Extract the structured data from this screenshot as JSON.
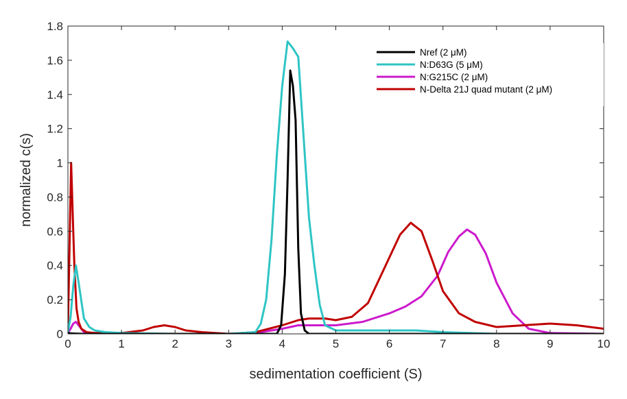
{
  "chart_data": {
    "type": "line",
    "xlabel": "sedimentation coefficient (S)",
    "ylabel": "normalized c(s)",
    "xlim": [
      0,
      10
    ],
    "ylim": [
      0,
      1.8
    ],
    "xticks": [
      "0",
      "1",
      "2",
      "3",
      "4",
      "5",
      "6",
      "7",
      "8",
      "9",
      "10"
    ],
    "yticks": [
      "0",
      "0.2",
      "0.4",
      "0.6",
      "0.8",
      "1",
      "1.2",
      "1.4",
      "1.6",
      "1.8"
    ],
    "grid": false,
    "legend_position": "top-right",
    "series": [
      {
        "name": "Nref (2 μM)",
        "color": "#000000",
        "x": [
          0,
          0.05,
          0.1,
          0.2,
          0.3,
          0.5,
          1,
          2,
          3,
          3.9,
          3.98,
          4.05,
          4.1,
          4.15,
          4.2,
          4.25,
          4.3,
          4.35,
          4.42,
          4.5,
          5,
          6,
          7,
          8,
          9,
          10
        ],
        "y": [
          0.005,
          0.003,
          0.002,
          0.001,
          0,
          0,
          0,
          0,
          0,
          0,
          0.05,
          0.35,
          0.9,
          1.54,
          1.45,
          1.25,
          0.5,
          0.12,
          0.02,
          0,
          0,
          0,
          0,
          0,
          0,
          0
        ]
      },
      {
        "name": "N:D63G (5 μM)",
        "color": "#2EC4C4",
        "x": [
          0,
          0.05,
          0.1,
          0.15,
          0.2,
          0.3,
          0.4,
          0.5,
          0.7,
          1,
          2,
          3,
          3.5,
          3.6,
          3.7,
          3.8,
          3.9,
          4,
          4.1,
          4.2,
          4.3,
          4.4,
          4.5,
          4.6,
          4.7,
          4.8,
          5,
          5.5,
          6,
          6.5,
          7,
          8,
          9,
          10
        ],
        "y": [
          0.01,
          0.1,
          0.28,
          0.4,
          0.3,
          0.09,
          0.04,
          0.02,
          0.01,
          0.005,
          0,
          0,
          0.01,
          0.06,
          0.2,
          0.55,
          1.05,
          1.45,
          1.71,
          1.67,
          1.62,
          1.15,
          0.68,
          0.4,
          0.17,
          0.05,
          0.02,
          0.02,
          0.02,
          0.02,
          0.01,
          0,
          0,
          0
        ]
      },
      {
        "name": "N:G215C (2 μM)",
        "color": "#CC19CC",
        "x": [
          0,
          0.05,
          0.1,
          0.15,
          0.2,
          0.3,
          0.5,
          1,
          2,
          3,
          3.5,
          4,
          4.3,
          4.6,
          5,
          5.5,
          6,
          6.3,
          6.6,
          6.9,
          7.1,
          7.3,
          7.45,
          7.6,
          7.8,
          8,
          8.3,
          8.6,
          9,
          10
        ],
        "y": [
          0.005,
          0.03,
          0.06,
          0.07,
          0.05,
          0.01,
          0,
          0,
          0,
          0,
          0.005,
          0.03,
          0.05,
          0.05,
          0.05,
          0.07,
          0.12,
          0.16,
          0.22,
          0.34,
          0.48,
          0.57,
          0.61,
          0.58,
          0.47,
          0.3,
          0.12,
          0.03,
          0.005,
          0
        ]
      },
      {
        "name": "N-Delta 21J quad mutant (2 μM)",
        "color": "#C00000",
        "x": [
          0,
          0.03,
          0.06,
          0.09,
          0.12,
          0.16,
          0.2,
          0.25,
          0.35,
          0.5,
          1,
          1.4,
          1.6,
          1.8,
          2,
          2.2,
          2.5,
          3,
          3.5,
          4,
          4.3,
          4.5,
          4.8,
          5,
          5.3,
          5.6,
          5.9,
          6.2,
          6.4,
          6.6,
          6.8,
          7,
          7.3,
          7.6,
          8,
          8.5,
          9,
          9.5,
          10
        ],
        "y": [
          0.03,
          0.5,
          1.0,
          0.7,
          0.4,
          0.15,
          0.07,
          0.03,
          0.01,
          0.005,
          0.005,
          0.02,
          0.04,
          0.05,
          0.04,
          0.02,
          0.01,
          0,
          0.01,
          0.05,
          0.08,
          0.09,
          0.09,
          0.08,
          0.1,
          0.18,
          0.38,
          0.58,
          0.65,
          0.6,
          0.43,
          0.25,
          0.12,
          0.07,
          0.04,
          0.05,
          0.06,
          0.05,
          0.03
        ]
      }
    ]
  }
}
